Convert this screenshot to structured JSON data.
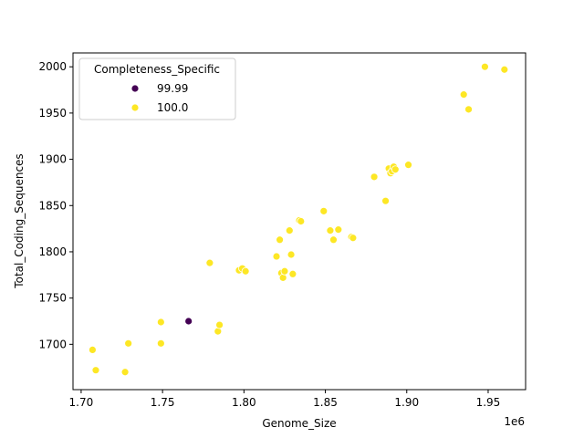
{
  "chart_data": {
    "type": "scatter",
    "xlabel": "Genome_Size",
    "ylabel": "Total_Coding_Sequences",
    "x_offset_label": "1e6",
    "xlim": [
      1.695,
      1.973
    ],
    "ylim": [
      1651,
      2015
    ],
    "x_ticks": [
      1.7,
      1.75,
      1.8,
      1.85,
      1.9,
      1.95
    ],
    "x_tick_labels": [
      "1.70",
      "1.75",
      "1.80",
      "1.85",
      "1.90",
      "1.95"
    ],
    "y_ticks": [
      1700,
      1750,
      1800,
      1850,
      1900,
      1950,
      2000
    ],
    "y_tick_labels": [
      "1700",
      "1750",
      "1800",
      "1850",
      "1900",
      "1950",
      "2000"
    ],
    "grid": false,
    "legend": {
      "title": "Completeness_Specific",
      "placement": "top-left",
      "entries": [
        {
          "label": "99.99",
          "color": "#440154"
        },
        {
          "label": "100.0",
          "color": "#fde725"
        }
      ]
    },
    "series": [
      {
        "name": "99.99",
        "color": "#440154",
        "points": [
          [
            1.766,
            1725
          ]
        ]
      },
      {
        "name": "100.0",
        "color": "#fde725",
        "points": [
          [
            1.707,
            1694
          ],
          [
            1.709,
            1672
          ],
          [
            1.727,
            1670
          ],
          [
            1.729,
            1701
          ],
          [
            1.749,
            1724
          ],
          [
            1.749,
            1701
          ],
          [
            1.779,
            1788
          ],
          [
            1.784,
            1714
          ],
          [
            1.785,
            1721
          ],
          [
            1.797,
            1780
          ],
          [
            1.799,
            1782
          ],
          [
            1.801,
            1779
          ],
          [
            1.82,
            1795
          ],
          [
            1.822,
            1813
          ],
          [
            1.823,
            1777
          ],
          [
            1.824,
            1772
          ],
          [
            1.825,
            1779
          ],
          [
            1.828,
            1823
          ],
          [
            1.829,
            1797
          ],
          [
            1.83,
            1776
          ],
          [
            1.834,
            1834
          ],
          [
            1.835,
            1833
          ],
          [
            1.849,
            1844
          ],
          [
            1.853,
            1823
          ],
          [
            1.855,
            1813
          ],
          [
            1.858,
            1824
          ],
          [
            1.866,
            1816
          ],
          [
            1.867,
            1815
          ],
          [
            1.88,
            1881
          ],
          [
            1.887,
            1855
          ],
          [
            1.889,
            1890
          ],
          [
            1.89,
            1885
          ],
          [
            1.891,
            1887
          ],
          [
            1.892,
            1892
          ],
          [
            1.893,
            1889
          ],
          [
            1.901,
            1894
          ],
          [
            1.935,
            1970
          ],
          [
            1.938,
            1954
          ],
          [
            1.948,
            2000
          ],
          [
            1.96,
            1997
          ]
        ]
      }
    ]
  }
}
